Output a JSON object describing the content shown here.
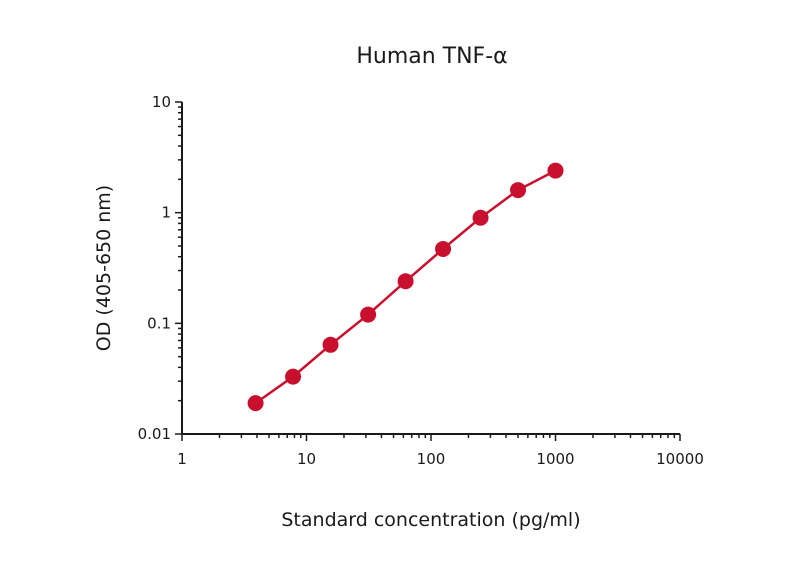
{
  "chart_data": {
    "type": "line",
    "title": "Human TNF-α",
    "xlabel": "Standard concentration (pg/ml)",
    "ylabel": "OD (405-650 nm)",
    "xscale": "log",
    "yscale": "log",
    "xlim": [
      1,
      10000
    ],
    "ylim": [
      0.01,
      10
    ],
    "x_ticks": [
      1,
      10,
      100,
      1000,
      10000
    ],
    "x_tick_labels": [
      "1",
      "10",
      "100",
      "1000",
      "10000"
    ],
    "y_ticks": [
      0.01,
      0.1,
      1,
      10
    ],
    "y_tick_labels": [
      "0.01",
      "0.1",
      "1",
      "10"
    ],
    "grid": false,
    "legend": "none",
    "series": [
      {
        "color": "#c8102e",
        "marker": "circle",
        "x": [
          3.9,
          7.8,
          15.6,
          31.25,
          62.5,
          125,
          250,
          500,
          1000
        ],
        "y": [
          0.019,
          0.033,
          0.064,
          0.12,
          0.24,
          0.47,
          0.9,
          1.6,
          2.4
        ]
      }
    ]
  }
}
